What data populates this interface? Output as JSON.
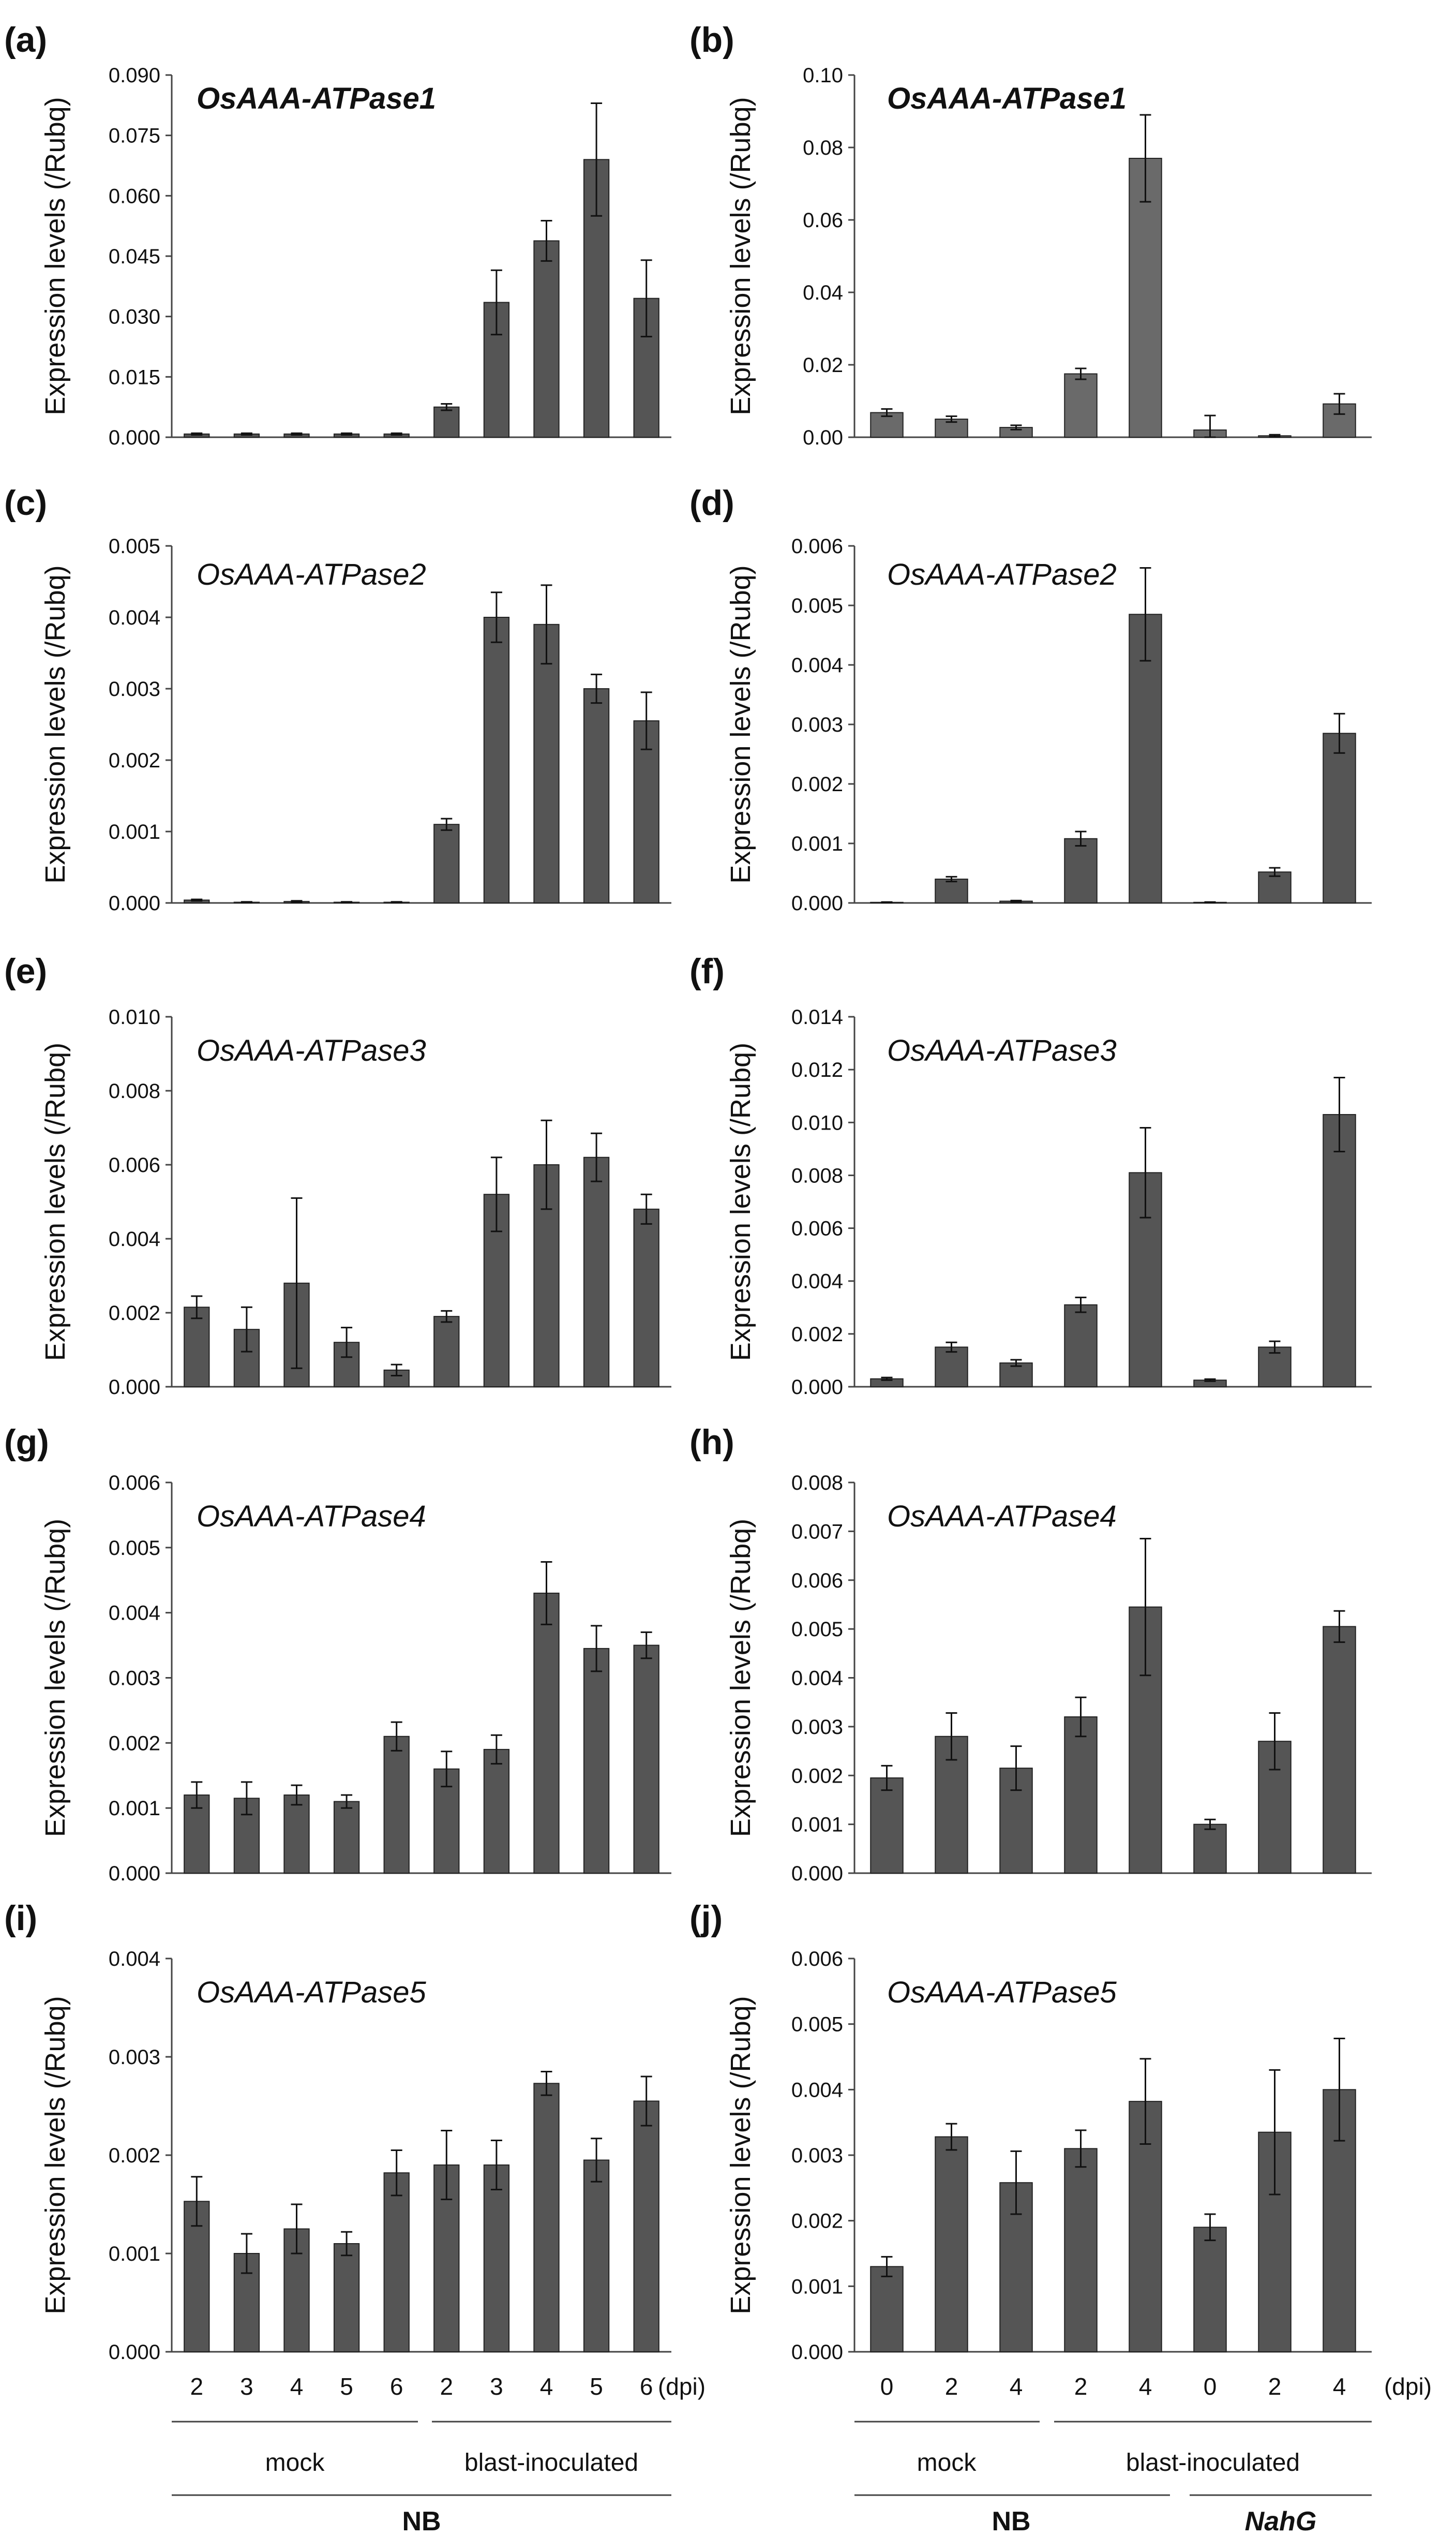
{
  "chart_data": [
    {
      "id": "a",
      "panel_label": "(a)",
      "gene": "OsAAA-ATPase1",
      "gene_bold": true,
      "type": "bar",
      "ylabel": "Expression levels (/Rubq)",
      "ylim": [
        0,
        0.09
      ],
      "yticks": [
        "0.000",
        "0.015",
        "0.030",
        "0.045",
        "0.060",
        "0.075",
        "0.090"
      ],
      "categories": [
        "2",
        "3",
        "4",
        "5",
        "6",
        "2",
        "3",
        "4",
        "5",
        "6"
      ],
      "values": [
        0.0008,
        0.0008,
        0.0008,
        0.0008,
        0.0008,
        0.0075,
        0.0335,
        0.0488,
        0.069,
        0.0345
      ],
      "errors": [
        0.0002,
        0.0002,
        0.0002,
        0.0002,
        0.0002,
        0.0008,
        0.008,
        0.005,
        0.014,
        0.0095
      ],
      "bar_color": "#555555"
    },
    {
      "id": "b",
      "panel_label": "(b)",
      "gene": "OsAAA-ATPase1",
      "gene_bold": true,
      "type": "bar",
      "ylabel": "Expression levels (/Rubq)",
      "ylim": [
        0,
        0.1
      ],
      "yticks": [
        "0.00",
        "0.02",
        "0.04",
        "0.06",
        "0.08",
        "0.10"
      ],
      "categories": [
        "0",
        "2",
        "4",
        "2",
        "4",
        "0",
        "2",
        "4"
      ],
      "values": [
        0.0068,
        0.005,
        0.0027,
        0.0175,
        0.077,
        0.002,
        0.0004,
        0.0092
      ],
      "errors": [
        0.001,
        0.0008,
        0.0006,
        0.0015,
        0.012,
        0.004,
        0.0003,
        0.0028
      ],
      "bar_color": "#6a6a6a"
    },
    {
      "id": "c",
      "panel_label": "(c)",
      "gene": "OsAAA-ATPase2",
      "gene_bold": false,
      "type": "bar",
      "ylabel": "Expression levels (/Rubq)",
      "ylim": [
        0,
        0.005
      ],
      "yticks": [
        "0.000",
        "0.001",
        "0.002",
        "0.003",
        "0.004",
        "0.005"
      ],
      "categories": [
        "2",
        "3",
        "4",
        "5",
        "6",
        "2",
        "3",
        "4",
        "5",
        "6"
      ],
      "values": [
        4e-05,
        1e-05,
        2e-05,
        1e-05,
        1e-05,
        0.0011,
        0.004,
        0.0039,
        0.003,
        0.00255
      ],
      "errors": [
        1e-05,
        5e-06,
        1e-05,
        5e-06,
        5e-06,
        8e-05,
        0.00035,
        0.00055,
        0.0002,
        0.0004
      ],
      "bar_color": "#555555"
    },
    {
      "id": "d",
      "panel_label": "(d)",
      "gene": "OsAAA-ATPase2",
      "gene_bold": false,
      "type": "bar",
      "ylabel": "Expression levels (/Rubq)",
      "ylim": [
        0,
        0.006
      ],
      "yticks": [
        "0.000",
        "0.001",
        "0.002",
        "0.003",
        "0.004",
        "0.005",
        "0.006"
      ],
      "categories": [
        "0",
        "2",
        "4",
        "2",
        "4",
        "0",
        "2",
        "4"
      ],
      "values": [
        1e-05,
        0.0004,
        3e-05,
        0.00108,
        0.00485,
        1e-05,
        0.00052,
        0.00285
      ],
      "errors": [
        5e-06,
        4e-05,
        1e-05,
        0.00012,
        0.00078,
        5e-06,
        7e-05,
        0.00033
      ],
      "bar_color": "#555555"
    },
    {
      "id": "e",
      "panel_label": "(e)",
      "gene": "OsAAA-ATPase3",
      "gene_bold": false,
      "type": "bar",
      "ylabel": "Expression levels (/Rubq)",
      "ylim": [
        0,
        0.01
      ],
      "yticks": [
        "0.000",
        "0.002",
        "0.004",
        "0.006",
        "0.008",
        "0.010"
      ],
      "categories": [
        "2",
        "3",
        "4",
        "5",
        "6",
        "2",
        "3",
        "4",
        "5",
        "6"
      ],
      "values": [
        0.00215,
        0.00155,
        0.0028,
        0.0012,
        0.00045,
        0.0019,
        0.0052,
        0.006,
        0.0062,
        0.0048
      ],
      "errors": [
        0.0003,
        0.0006,
        0.0023,
        0.0004,
        0.00015,
        0.00015,
        0.001,
        0.0012,
        0.00065,
        0.0004
      ],
      "bar_color": "#555555"
    },
    {
      "id": "f",
      "panel_label": "(f)",
      "gene": "OsAAA-ATPase3",
      "gene_bold": false,
      "type": "bar",
      "ylabel": "Expression levels (/Rubq)",
      "ylim": [
        0,
        0.014
      ],
      "yticks": [
        "0.000",
        "0.002",
        "0.004",
        "0.006",
        "0.008",
        "0.010",
        "0.012",
        "0.014"
      ],
      "categories": [
        "0",
        "2",
        "4",
        "2",
        "4",
        "0",
        "2",
        "4"
      ],
      "values": [
        0.0003,
        0.0015,
        0.0009,
        0.0031,
        0.0081,
        0.00025,
        0.0015,
        0.0103
      ],
      "errors": [
        5e-05,
        0.00018,
        0.00012,
        0.00028,
        0.0017,
        4e-05,
        0.00022,
        0.0014
      ],
      "bar_color": "#555555"
    },
    {
      "id": "g",
      "panel_label": "(g)",
      "gene": "OsAAA-ATPase4",
      "gene_bold": false,
      "type": "bar",
      "ylabel": "Expression levels (/Rubq)",
      "ylim": [
        0,
        0.006
      ],
      "yticks": [
        "0.000",
        "0.001",
        "0.002",
        "0.003",
        "0.004",
        "0.005",
        "0.006"
      ],
      "categories": [
        "2",
        "3",
        "4",
        "5",
        "6",
        "2",
        "3",
        "4",
        "5",
        "6"
      ],
      "values": [
        0.0012,
        0.00115,
        0.0012,
        0.0011,
        0.0021,
        0.0016,
        0.0019,
        0.0043,
        0.00345,
        0.0035
      ],
      "errors": [
        0.0002,
        0.00025,
        0.00015,
        0.0001,
        0.00022,
        0.00027,
        0.00022,
        0.00048,
        0.00035,
        0.0002
      ],
      "bar_color": "#555555"
    },
    {
      "id": "h",
      "panel_label": "(h)",
      "gene": "OsAAA-ATPase4",
      "gene_bold": false,
      "type": "bar",
      "ylabel": "Expression levels (/Rubq)",
      "ylim": [
        0,
        0.008
      ],
      "yticks": [
        "0.000",
        "0.001",
        "0.002",
        "0.003",
        "0.004",
        "0.005",
        "0.006",
        "0.007",
        "0.008"
      ],
      "categories": [
        "0",
        "2",
        "4",
        "2",
        "4",
        "0",
        "2",
        "4"
      ],
      "values": [
        0.00195,
        0.0028,
        0.00215,
        0.0032,
        0.00545,
        0.001,
        0.0027,
        0.00505
      ],
      "errors": [
        0.00025,
        0.00048,
        0.00045,
        0.0004,
        0.0014,
        0.0001,
        0.00058,
        0.00032
      ],
      "bar_color": "#555555"
    },
    {
      "id": "i",
      "panel_label": "(i)",
      "gene": "OsAAA-ATPase5",
      "gene_bold": false,
      "type": "bar",
      "ylabel": "Expression levels (/Rubq)",
      "ylim": [
        0,
        0.004
      ],
      "yticks": [
        "0.000",
        "0.001",
        "0.002",
        "0.003",
        "0.004"
      ],
      "categories": [
        "2",
        "3",
        "4",
        "5",
        "6",
        "2",
        "3",
        "4",
        "5",
        "6"
      ],
      "values": [
        0.00153,
        0.001,
        0.00125,
        0.0011,
        0.00182,
        0.0019,
        0.0019,
        0.00273,
        0.00195,
        0.00255
      ],
      "errors": [
        0.00025,
        0.0002,
        0.00025,
        0.00012,
        0.00023,
        0.00035,
        0.00025,
        0.00012,
        0.00022,
        0.00025
      ],
      "bar_color": "#555555"
    },
    {
      "id": "j",
      "panel_label": "(j)",
      "gene": "OsAAA-ATPase5",
      "gene_bold": false,
      "type": "bar",
      "ylabel": "Expression levels (/Rubq)",
      "ylim": [
        0,
        0.006
      ],
      "yticks": [
        "0.000",
        "0.001",
        "0.002",
        "0.003",
        "0.004",
        "0.005",
        "0.006"
      ],
      "categories": [
        "0",
        "2",
        "4",
        "2",
        "4",
        "0",
        "2",
        "4"
      ],
      "values": [
        0.0013,
        0.00328,
        0.00258,
        0.0031,
        0.00382,
        0.0019,
        0.00335,
        0.004
      ],
      "errors": [
        0.00015,
        0.0002,
        0.00048,
        0.00028,
        0.00065,
        0.0002,
        0.00095,
        0.00078
      ],
      "bar_color": "#555555"
    }
  ],
  "footer_left": {
    "unit": "(dpi)",
    "conditions": [
      "mock",
      "blast-inoculated"
    ],
    "genotype": "NB"
  },
  "footer_right": {
    "unit": "(dpi)",
    "conditions": [
      "mock",
      "blast-inoculated"
    ],
    "genotypes": [
      "NB",
      "NahG"
    ]
  }
}
